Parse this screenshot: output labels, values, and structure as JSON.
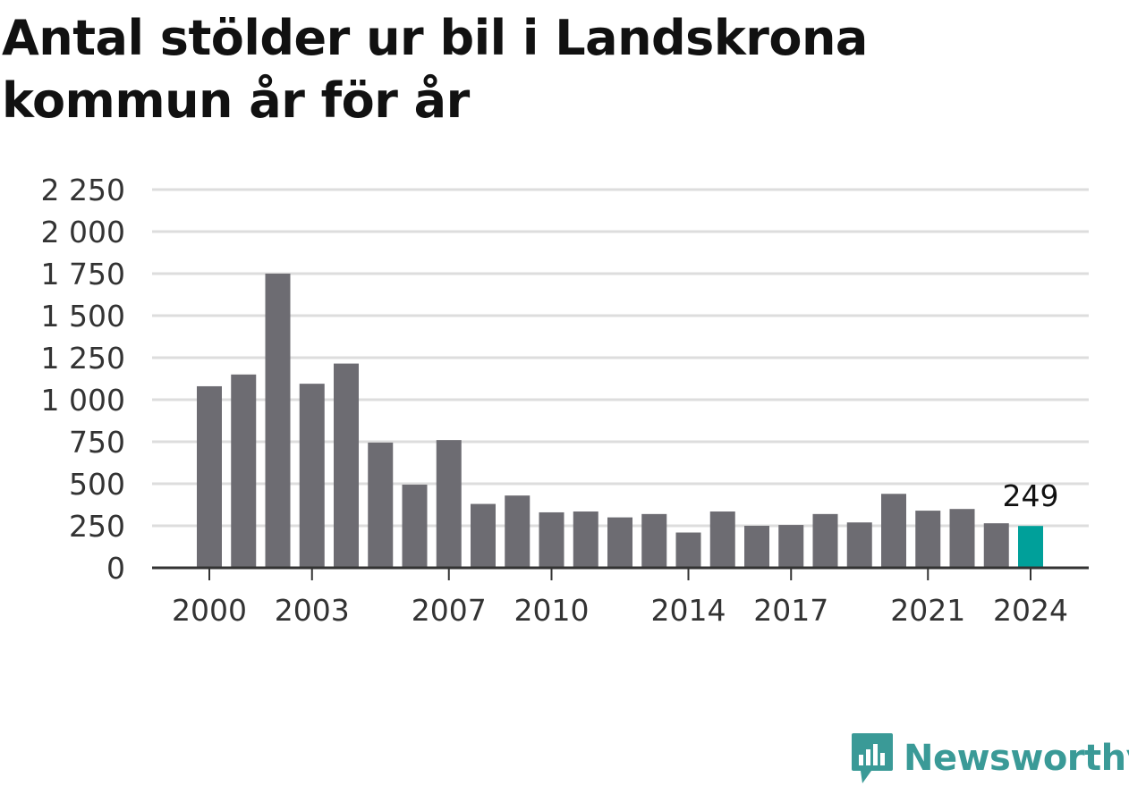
{
  "title": "Antal stölder ur bil i Landskrona kommun år för år",
  "brand": {
    "name": "Newsworthy",
    "color": "#3a9a97",
    "icon": "chart-bubble-icon"
  },
  "colors": {
    "bar": "#6d6c72",
    "highlight": "#00a09a",
    "grid": "#dddddd",
    "axis": "#333333"
  },
  "chart_data": {
    "type": "bar",
    "title": "Antal stölder ur bil i Landskrona kommun år för år",
    "xlabel": "",
    "ylabel": "",
    "categories": [
      "2000",
      "2001",
      "2002",
      "2003",
      "2004",
      "2005",
      "2006",
      "2007",
      "2008",
      "2009",
      "2010",
      "2011",
      "2012",
      "2013",
      "2014",
      "2015",
      "2016",
      "2017",
      "2018",
      "2019",
      "2020",
      "2021",
      "2022",
      "2023",
      "2024"
    ],
    "values": [
      1080,
      1150,
      1750,
      1095,
      1215,
      745,
      495,
      760,
      380,
      430,
      330,
      335,
      300,
      320,
      210,
      335,
      250,
      255,
      320,
      270,
      440,
      340,
      350,
      265,
      249
    ],
    "x_tick_labels": [
      "2000",
      "2003",
      "2007",
      "2010",
      "2014",
      "2017",
      "2021",
      "2024"
    ],
    "y_ticks": [
      0,
      250,
      500,
      750,
      1000,
      1250,
      1500,
      1750,
      2000,
      2250
    ],
    "y_tick_labels": [
      "0",
      "250",
      "500",
      "750",
      "1 000",
      "1 250",
      "1 500",
      "1 750",
      "2 000",
      "2 250"
    ],
    "ylim": [
      0,
      2250
    ],
    "grid": true,
    "highlight": {
      "category": "2024",
      "label": "249"
    }
  }
}
